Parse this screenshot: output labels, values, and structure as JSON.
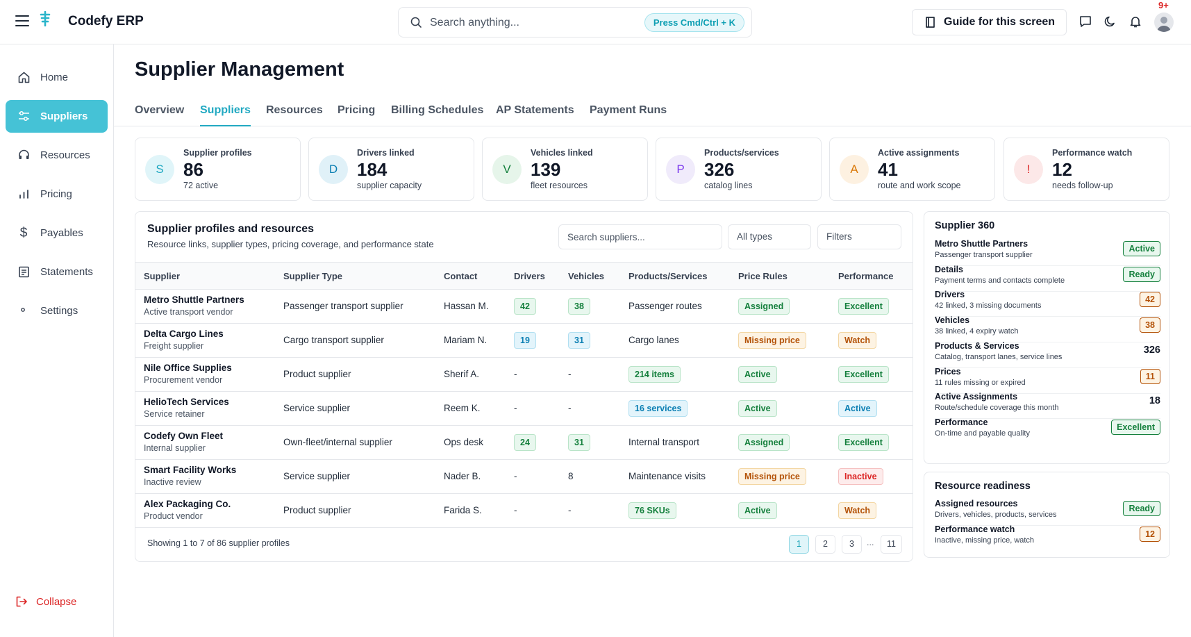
{
  "app": {
    "name": "Codefy ERP"
  },
  "header": {
    "search_placeholder": "Search anything...",
    "shortcut_hint": "Press Cmd/Ctrl + K",
    "guide_label": "Guide for this screen",
    "notification_count": "9+"
  },
  "sidebar": {
    "items": [
      {
        "label": "Home",
        "icon": "home-icon"
      },
      {
        "label": "Suppliers",
        "icon": "sliders-icon",
        "active": true
      },
      {
        "label": "Resources",
        "icon": "headset-icon"
      },
      {
        "label": "Pricing",
        "icon": "bar-chart-icon"
      },
      {
        "label": "Payables",
        "icon": "dollar-icon"
      },
      {
        "label": "Statements",
        "icon": "document-icon"
      },
      {
        "label": "Settings",
        "icon": "dot-icon"
      }
    ],
    "collapse_label": "Collapse"
  },
  "page": {
    "title": "Supplier Management"
  },
  "tabs": [
    "Overview",
    "Suppliers",
    "Resources",
    "Pricing",
    "Billing Schedules",
    "AP Statements",
    "Payment Runs"
  ],
  "stats": [
    {
      "letter": "S",
      "label": "Supplier profiles",
      "value": "86",
      "sub": "72 active",
      "color": "#22a9c2"
    },
    {
      "letter": "D",
      "label": "Drivers linked",
      "value": "184",
      "sub": "supplier capacity",
      "color": "#0b7fb3"
    },
    {
      "letter": "V",
      "label": "Vehicles linked",
      "value": "139",
      "sub": "fleet resources",
      "color": "#15803d"
    },
    {
      "letter": "P",
      "label": "Products/services",
      "value": "326",
      "sub": "catalog lines",
      "color": "#7c3aed"
    },
    {
      "letter": "A",
      "label": "Active assignments",
      "value": "41",
      "sub": "route and work scope",
      "color": "#d97706"
    },
    {
      "letter": "!",
      "label": "Performance watch",
      "value": "12",
      "sub": "needs follow-up",
      "color": "#dc2626"
    }
  ],
  "table": {
    "title": "Supplier profiles and resources",
    "subtitle": "Resource links, supplier types, pricing coverage, and performance state",
    "search_placeholder": "Search suppliers...",
    "type_filter": "All types",
    "filters_label": "Filters",
    "columns": [
      "Supplier",
      "Supplier Type",
      "Contact",
      "Drivers",
      "Vehicles",
      "Products/Services",
      "Price Rules",
      "Performance"
    ],
    "rows": [
      {
        "name": "Metro Shuttle Partners",
        "desc": "Active transport vendor",
        "type": "Passenger transport supplier",
        "contact": "Hassan M.",
        "drivers": "42",
        "drivers_style": "g",
        "vehicles": "38",
        "vehicles_style": "g",
        "products": "Passenger routes",
        "products_style": "",
        "price": "Assigned",
        "price_style": "g",
        "perf": "Excellent",
        "perf_style": "g"
      },
      {
        "name": "Delta Cargo Lines",
        "desc": "Freight supplier",
        "type": "Cargo transport supplier",
        "contact": "Mariam N.",
        "drivers": "19",
        "drivers_style": "b",
        "vehicles": "31",
        "vehicles_style": "b",
        "products": "Cargo lanes",
        "products_style": "",
        "price": "Missing price",
        "price_style": "o",
        "perf": "Watch",
        "perf_style": "o"
      },
      {
        "name": "Nile Office Supplies",
        "desc": "Procurement vendor",
        "type": "Product supplier",
        "contact": "Sherif A.",
        "drivers": "-",
        "drivers_style": "",
        "vehicles": "-",
        "vehicles_style": "",
        "products": "214 items",
        "products_style": "g",
        "price": "Active",
        "price_style": "g",
        "perf": "Excellent",
        "perf_style": "g"
      },
      {
        "name": "HelioTech Services",
        "desc": "Service retainer",
        "type": "Service supplier",
        "contact": "Reem K.",
        "drivers": "-",
        "drivers_style": "",
        "vehicles": "-",
        "vehicles_style": "",
        "products": "16 services",
        "products_style": "b",
        "price": "Active",
        "price_style": "g",
        "perf": "Active",
        "perf_style": "b"
      },
      {
        "name": "Codefy Own Fleet",
        "desc": "Internal supplier",
        "type": "Own-fleet/internal supplier",
        "contact": "Ops desk",
        "drivers": "24",
        "drivers_style": "g",
        "vehicles": "31",
        "vehicles_style": "g",
        "products": "Internal transport",
        "products_style": "",
        "price": "Assigned",
        "price_style": "g",
        "perf": "Excellent",
        "perf_style": "g"
      },
      {
        "name": "Smart Facility Works",
        "desc": "Inactive review",
        "type": "Service supplier",
        "contact": "Nader B.",
        "drivers": "-",
        "drivers_style": "",
        "vehicles": "8",
        "vehicles_style": "",
        "products": "Maintenance visits",
        "products_style": "",
        "price": "Missing price",
        "price_style": "o",
        "perf": "Inactive",
        "perf_style": "r"
      },
      {
        "name": "Alex Packaging Co.",
        "desc": "Product vendor",
        "type": "Product supplier",
        "contact": "Farida S.",
        "drivers": "-",
        "drivers_style": "",
        "vehicles": "-",
        "vehicles_style": "",
        "products": "76 SKUs",
        "products_style": "g",
        "price": "Active",
        "price_style": "g",
        "perf": "Watch",
        "perf_style": "o"
      }
    ],
    "footer": "Showing 1 to 7 of 86 supplier profiles",
    "pages": [
      "1",
      "2",
      "3",
      "11"
    ],
    "ellipsis": "..."
  },
  "supplier360": {
    "title": "Supplier 360",
    "rows": [
      {
        "label": "Metro Shuttle Partners",
        "desc": "Passenger transport supplier",
        "value": "Active",
        "style": "g"
      },
      {
        "label": "Details",
        "desc": "Payment terms and contacts complete",
        "value": "Ready",
        "style": "g"
      },
      {
        "label": "Drivers",
        "desc": "42 linked, 3 missing documents",
        "value": "42",
        "style": "o"
      },
      {
        "label": "Vehicles",
        "desc": "38 linked, 4 expiry watch",
        "value": "38",
        "style": "o"
      },
      {
        "label": "Products & Services",
        "desc": "Catalog, transport lanes, service lines",
        "value": "326",
        "style": ""
      },
      {
        "label": "Prices",
        "desc": "11 rules missing or expired",
        "value": "11",
        "style": "o"
      },
      {
        "label": "Active Assignments",
        "desc": "Route/schedule coverage this month",
        "value": "18",
        "style": ""
      },
      {
        "label": "Performance",
        "desc": "On-time and payable quality",
        "value": "Excellent",
        "style": "g"
      }
    ]
  },
  "readiness": {
    "title": "Resource readiness",
    "rows": [
      {
        "label": "Assigned resources",
        "desc": "Drivers, vehicles, products, services",
        "value": "Ready",
        "style": "g"
      },
      {
        "label": "Performance watch",
        "desc": "Inactive, missing price, watch",
        "value": "12",
        "style": "o"
      }
    ]
  }
}
